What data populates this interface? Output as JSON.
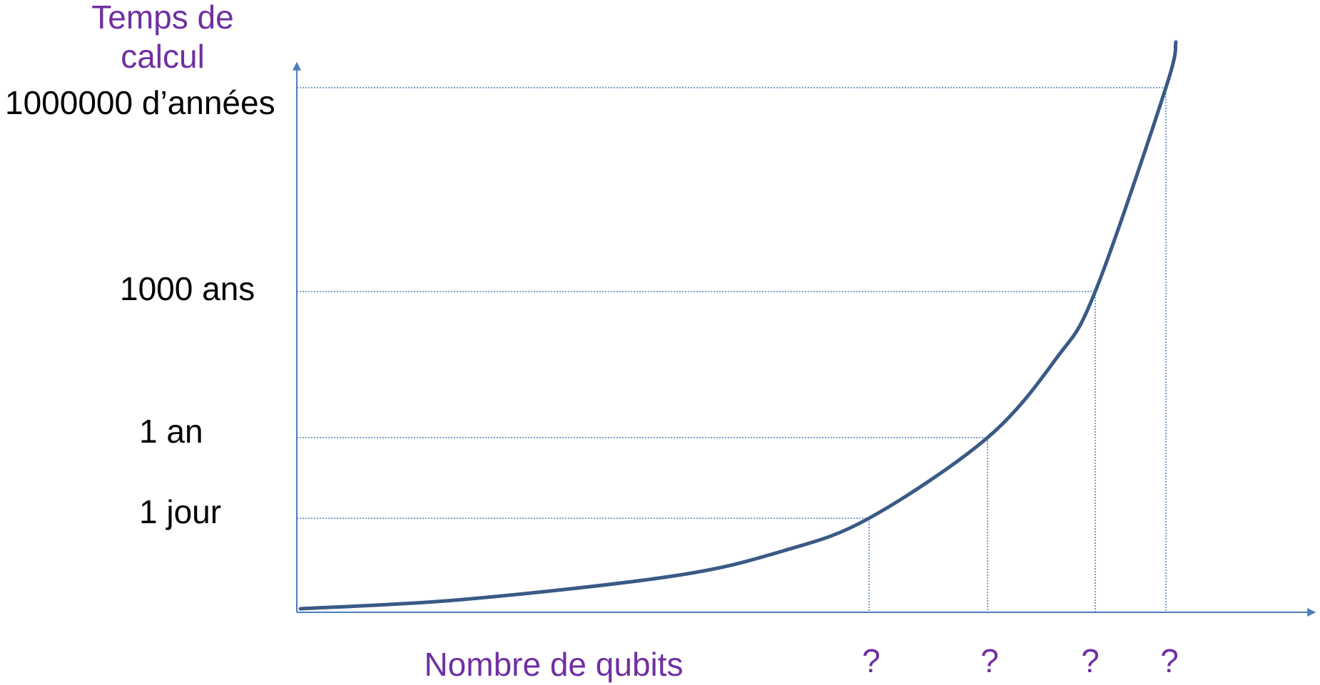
{
  "y_axis": {
    "title_lines": [
      "Temps de",
      "calcul"
    ],
    "labels": [
      "1000000 d’années",
      "1000 ans",
      "1 an",
      "1 jour"
    ]
  },
  "x_axis": {
    "title": "Nombre de qubits",
    "labels": [
      "?",
      "?",
      "?",
      "?"
    ]
  }
}
